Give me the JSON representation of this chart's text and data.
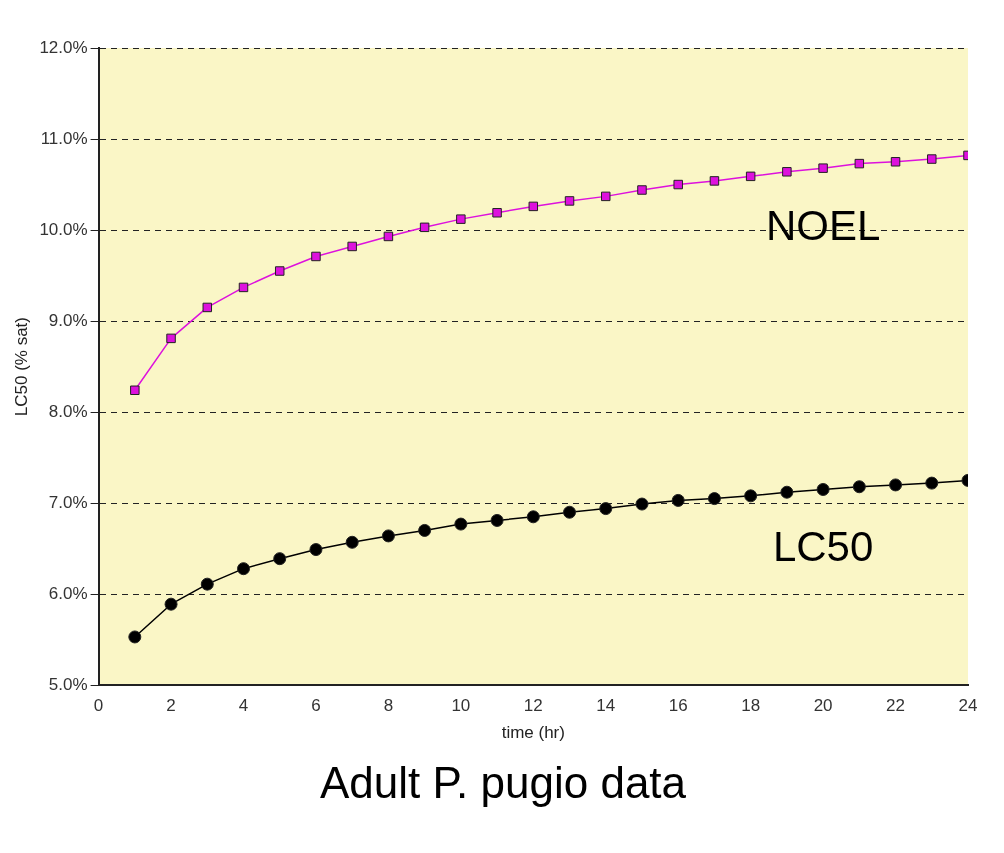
{
  "chart_data": {
    "type": "line",
    "title": "Adult P. pugio data",
    "xlabel": "time (hr)",
    "ylabel": "LC50 (% sat)",
    "x": [
      1,
      2,
      3,
      4,
      5,
      6,
      7,
      8,
      9,
      10,
      11,
      12,
      13,
      14,
      15,
      16,
      17,
      18,
      19,
      20,
      21,
      22,
      23,
      24
    ],
    "series": [
      {
        "name": "NOEL",
        "color": "#dd11dd",
        "marker": "square",
        "values": [
          8.24,
          8.81,
          9.15,
          9.37,
          9.55,
          9.71,
          9.82,
          9.93,
          10.03,
          10.12,
          10.19,
          10.26,
          10.32,
          10.37,
          10.44,
          10.5,
          10.54,
          10.59,
          10.64,
          10.68,
          10.73,
          10.75,
          10.78,
          10.82
        ]
      },
      {
        "name": "LC50",
        "color": "#000000",
        "marker": "circle",
        "values": [
          5.53,
          5.89,
          6.11,
          6.28,
          6.39,
          6.49,
          6.57,
          6.64,
          6.7,
          6.77,
          6.81,
          6.85,
          6.9,
          6.94,
          6.99,
          7.03,
          7.05,
          7.08,
          7.12,
          7.15,
          7.18,
          7.2,
          7.22,
          7.25
        ]
      }
    ],
    "xlim": [
      0,
      24
    ],
    "xticks": [
      0,
      2,
      4,
      6,
      8,
      10,
      12,
      14,
      16,
      18,
      20,
      22,
      24
    ],
    "ylim": [
      5,
      12
    ],
    "yticks": [
      {
        "value": 5,
        "label": "5.0%"
      },
      {
        "value": 6,
        "label": "6.0%"
      },
      {
        "value": 7,
        "label": "7.0%"
      },
      {
        "value": 8,
        "label": "8.0%"
      },
      {
        "value": 9,
        "label": "9.0%"
      },
      {
        "value": 10,
        "label": "10.0%"
      },
      {
        "value": 11,
        "label": "11.0%"
      },
      {
        "value": 12,
        "label": "12.0%"
      }
    ],
    "grid": "y",
    "legend": false,
    "line_style": "solid"
  }
}
